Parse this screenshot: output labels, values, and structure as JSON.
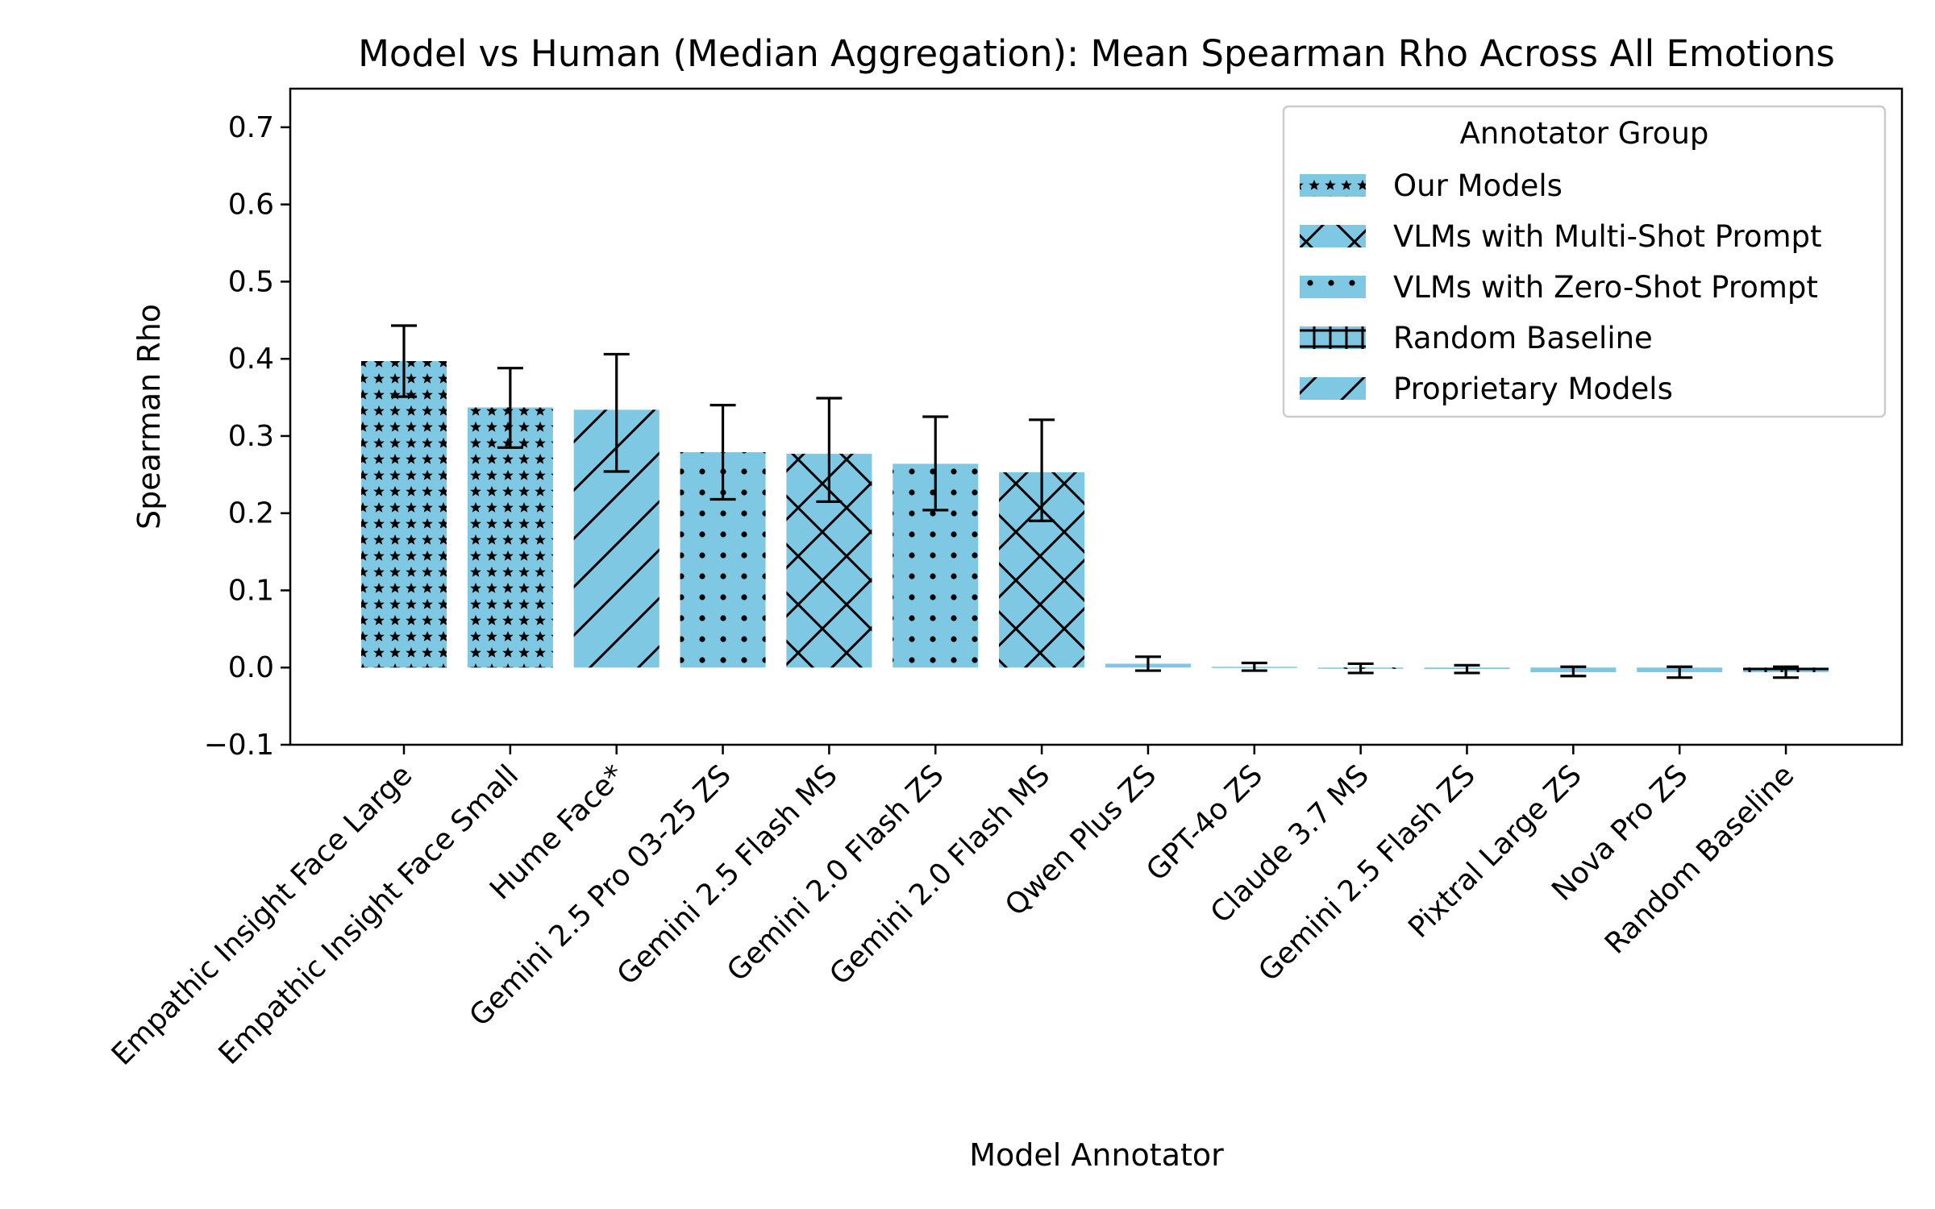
{
  "chart_data": {
    "type": "bar",
    "title": "Model vs Human (Median Aggregation): Mean Spearman Rho Across All Emotions",
    "xlabel": "Model Annotator",
    "ylabel": "Spearman Rho",
    "ylim": [
      -0.1,
      0.75
    ],
    "yticks": [
      -0.1,
      0.0,
      0.1,
      0.2,
      0.3,
      0.4,
      0.5,
      0.6,
      0.7
    ],
    "ytick_labels": [
      "−0.1",
      "0.0",
      "0.1",
      "0.2",
      "0.3",
      "0.4",
      "0.5",
      "0.6",
      "0.7"
    ],
    "grid": false,
    "bar_color": "#7ec8e3",
    "legend": {
      "title": "Annotator Group",
      "placement": "top-right",
      "entries": [
        {
          "label": "Our Models",
          "hatch": "stars"
        },
        {
          "label": "VLMs with Multi-Shot Prompt",
          "hatch": "cross"
        },
        {
          "label": "VLMs with Zero-Shot Prompt",
          "hatch": "dots"
        },
        {
          "label": "Random Baseline",
          "hatch": "plus"
        },
        {
          "label": "Proprietary Models",
          "hatch": "diag"
        }
      ]
    },
    "categories": [
      "Empathic Insight Face Large",
      "Empathic Insight Face Small",
      "Hume Face*",
      "Gemini 2.5 Pro 03-25 ZS",
      "Gemini 2.5 Flash MS",
      "Gemini 2.0 Flash ZS",
      "Gemini 2.0 Flash MS",
      "Qwen Plus ZS",
      "GPT-4o ZS",
      "Claude 3.7 MS",
      "Gemini 2.5 Flash ZS",
      "Pixtral Large ZS",
      "Nova Pro ZS",
      "Random Baseline"
    ],
    "values": [
      0.397,
      0.337,
      0.334,
      0.279,
      0.277,
      0.264,
      0.253,
      0.005,
      0.001,
      -0.001,
      -0.002,
      -0.006,
      -0.006,
      -0.006
    ],
    "error_low": [
      0.351,
      0.285,
      0.254,
      0.218,
      0.215,
      0.204,
      0.19,
      -0.004,
      -0.004,
      -0.007,
      -0.007,
      -0.011,
      -0.013,
      -0.013
    ],
    "error_high": [
      0.443,
      0.388,
      0.406,
      0.34,
      0.349,
      0.325,
      0.321,
      0.014,
      0.006,
      0.005,
      0.003,
      0.001,
      0.001,
      0.001
    ],
    "groups": [
      "stars",
      "stars",
      "diag",
      "dots",
      "cross",
      "dots",
      "cross",
      "dots",
      "dots",
      "cross",
      "dots",
      "dots",
      "dots",
      "plus"
    ]
  }
}
